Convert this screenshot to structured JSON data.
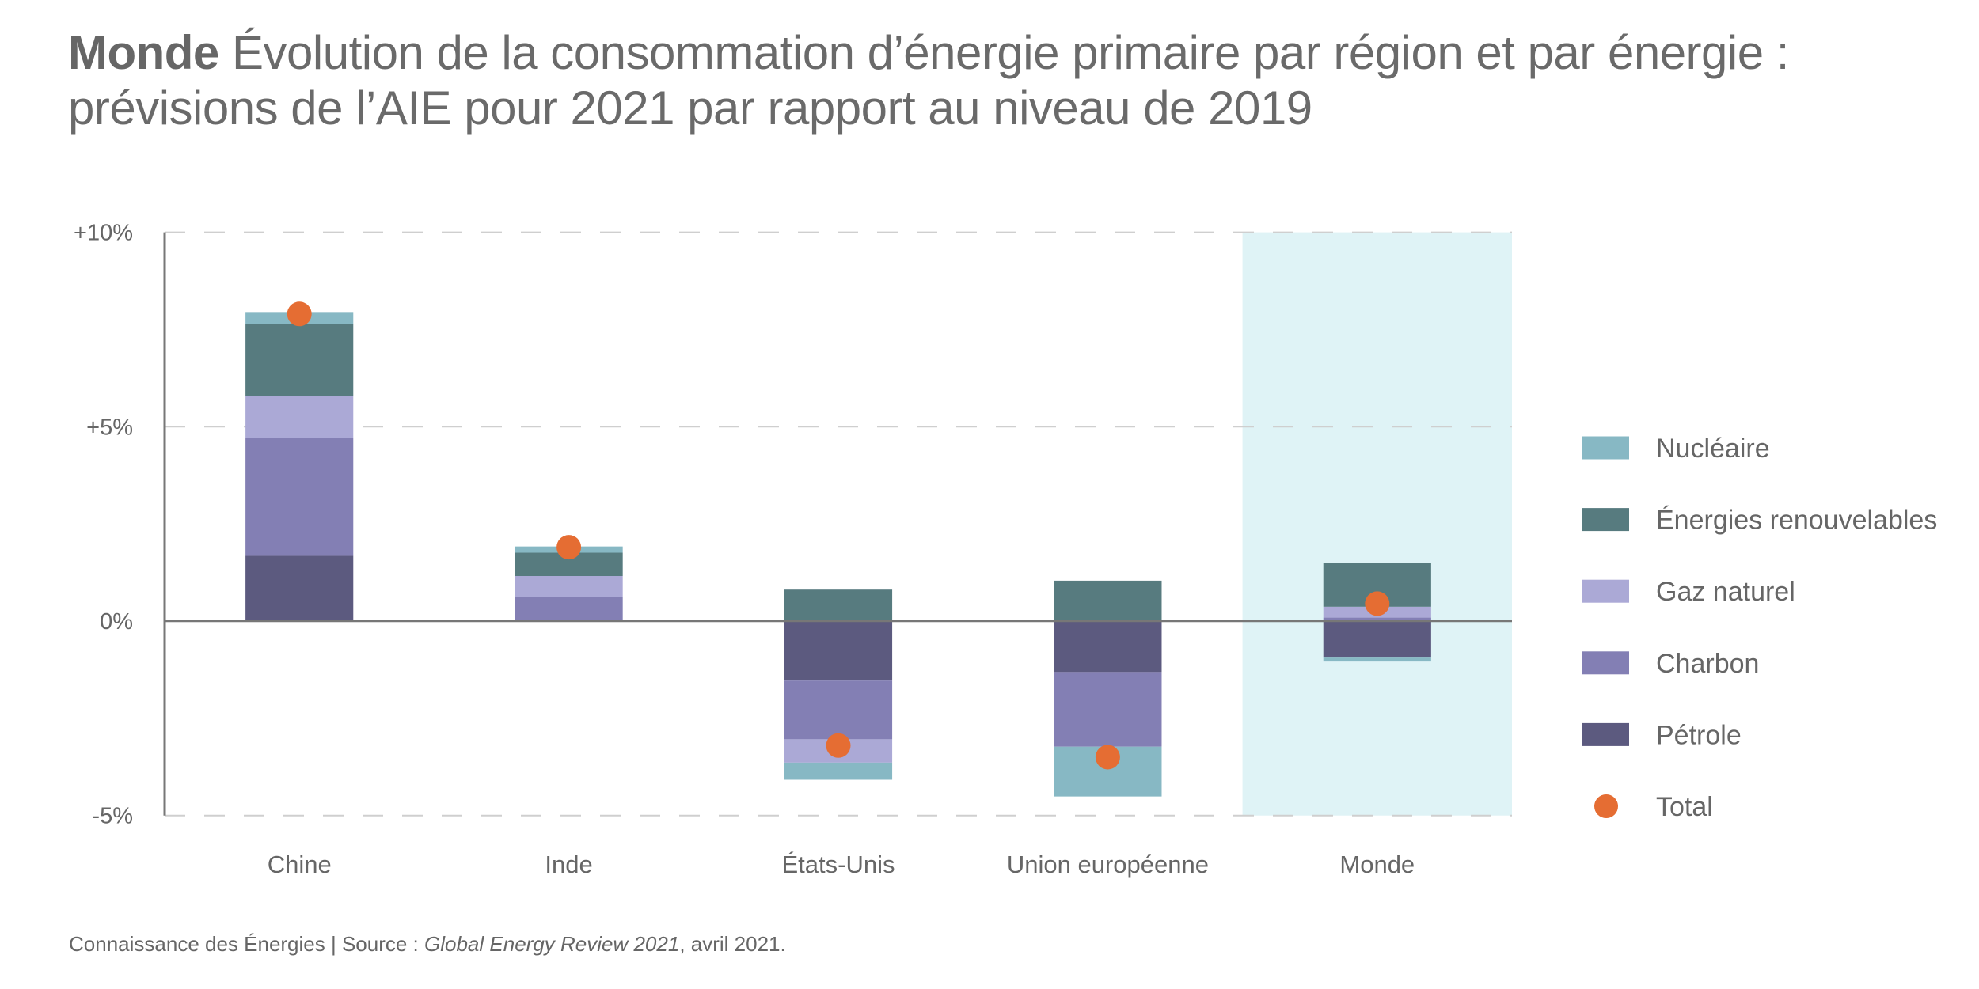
{
  "title": {
    "bold": "Monde",
    "line1": "Évolution de la consommation d’énergie primaire par région et par énergie :",
    "line2": "prévisions de l’AIE pour 2021 par rapport au niveau de 2019"
  },
  "footer": {
    "prefix": "Connaissance des Énergies | Source : ",
    "source_title": "Global Energy Review 2021",
    "suffix": ", avril 2021."
  },
  "colors": {
    "nucleaire": "#87b8c4",
    "renouvelables": "#577b7f",
    "gaz": "#aba9d6",
    "charbon": "#837fb4",
    "petrole": "#5c5a7f",
    "total": "#e56d33",
    "highlight": "#dff3f6"
  },
  "chart_data": {
    "type": "bar",
    "stacked": true,
    "title": "Monde Évolution de la consommation d’énergie primaire par région et par énergie : prévisions de l’AIE pour 2021 par rapport au niveau de 2019",
    "xlabel": "",
    "ylabel": "",
    "unit": "%",
    "categories": [
      "Chine",
      "Inde",
      "États-Unis",
      "Union européenne",
      "Monde"
    ],
    "highlighted_category": "Monde",
    "ylim": [
      -5,
      10
    ],
    "yticks": [
      -5,
      0,
      5,
      10
    ],
    "ytick_labels": [
      "-5%",
      "0%",
      "+5%",
      "+10%"
    ],
    "grid": "horizontal dashed",
    "legend_position": "right",
    "series": [
      {
        "key": "petrole",
        "name": "Pétrole",
        "values": [
          1.68,
          0.0,
          -1.53,
          -1.31,
          -0.94
        ]
      },
      {
        "key": "charbon",
        "name": "Charbon",
        "values": [
          3.03,
          0.63,
          -1.51,
          -1.92,
          0.09
        ]
      },
      {
        "key": "gaz",
        "name": "Gaz naturel",
        "values": [
          1.07,
          0.53,
          -0.6,
          0.0,
          0.28
        ]
      },
      {
        "key": "renouvelables",
        "name": "Énergies renouvelables",
        "values": [
          1.87,
          0.6,
          0.81,
          1.04,
          1.12
        ]
      },
      {
        "key": "nucleaire",
        "name": "Nucléaire",
        "values": [
          0.3,
          0.16,
          -0.44,
          -1.28,
          -0.1
        ]
      }
    ],
    "total": {
      "name": "Total",
      "values": [
        7.9,
        1.9,
        -3.2,
        -3.5,
        0.45
      ]
    },
    "legend": [
      {
        "key": "nucleaire",
        "label": "Nucléaire",
        "shape": "square"
      },
      {
        "key": "renouvelables",
        "label": "Énergies renouvelables",
        "shape": "square"
      },
      {
        "key": "gaz",
        "label": "Gaz naturel",
        "shape": "square"
      },
      {
        "key": "charbon",
        "label": "Charbon",
        "shape": "square"
      },
      {
        "key": "petrole",
        "label": "Pétrole",
        "shape": "square"
      },
      {
        "key": "total",
        "label": "Total",
        "shape": "circle"
      }
    ]
  }
}
